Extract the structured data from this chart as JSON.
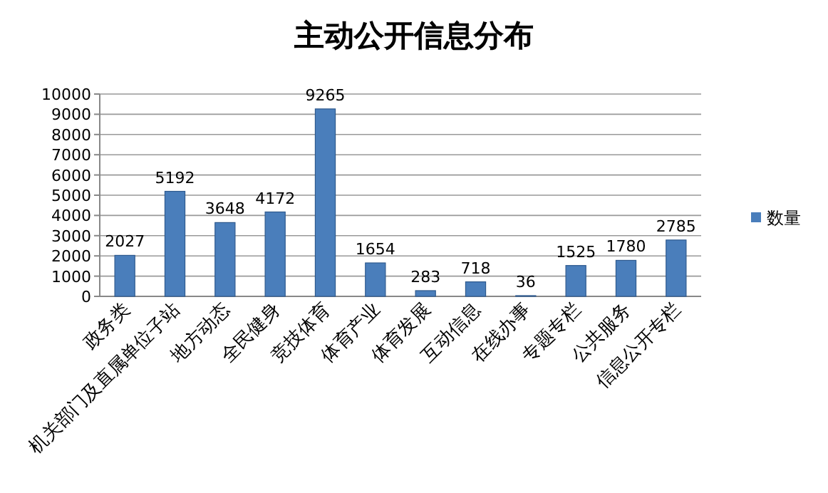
{
  "chart_data": {
    "type": "bar",
    "title": "主动公开信息分布",
    "categories": [
      "政务类",
      "机关部门及直属单位子站",
      "地方动态",
      "全民健身",
      "竞技体育",
      "体育产业",
      "体育发展",
      "互动信息",
      "在线办事",
      "专题专栏",
      "公共服务",
      "信息公开专栏"
    ],
    "series": [
      {
        "name": "数量",
        "color": "#4a7ebb",
        "values": [
          2027,
          5192,
          3648,
          4172,
          9265,
          1654,
          283,
          718,
          36,
          1525,
          1780,
          2785
        ]
      }
    ],
    "ylim": [
      0,
      10000
    ],
    "yticks": [
      0,
      1000,
      2000,
      3000,
      4000,
      5000,
      6000,
      7000,
      8000,
      9000,
      10000
    ],
    "grid": "y",
    "legend": "right",
    "data_labels": true
  }
}
